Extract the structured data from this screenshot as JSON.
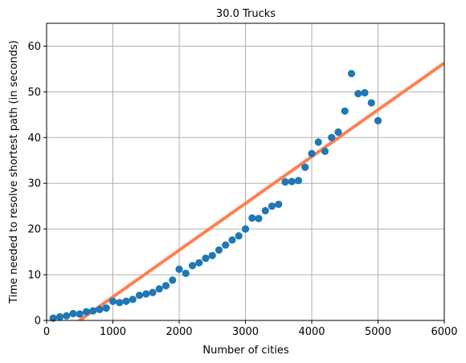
{
  "chart_data": {
    "type": "scatter",
    "title": "30.0 Trucks",
    "xlabel": "Number of cities",
    "ylabel": "Time needed to resolve shortest path (in seconds)",
    "xlim": [
      0,
      6000
    ],
    "ylim": [
      0,
      65
    ],
    "xticks": [
      0,
      1000,
      2000,
      3000,
      4000,
      5000,
      6000
    ],
    "yticks": [
      0,
      10,
      20,
      30,
      40,
      50,
      60
    ],
    "grid": true,
    "colors": {
      "points": "#1f77b4",
      "fit_line": "#ff7f50",
      "grid": "#b0b0b0"
    },
    "series": [
      {
        "kind": "scatter",
        "x": [
          100,
          200,
          300,
          400,
          500,
          600,
          700,
          800,
          900,
          1000,
          1100,
          1200,
          1300,
          1400,
          1500,
          1600,
          1700,
          1800,
          1900,
          2000,
          2100,
          2200,
          2300,
          2400,
          2500,
          2600,
          2700,
          2800,
          2900,
          3000,
          3100,
          3200,
          3300,
          3400,
          3500,
          3600,
          3700,
          3800,
          3900,
          4000,
          4100,
          4200,
          4300,
          4400,
          4500,
          4600,
          4700,
          4800,
          4900,
          5000
        ],
        "y": [
          0.5,
          0.8,
          1.0,
          1.5,
          1.4,
          1.9,
          2.1,
          2.4,
          2.7,
          4.2,
          3.9,
          4.2,
          4.6,
          5.5,
          5.8,
          6.1,
          6.9,
          7.6,
          8.8,
          11.2,
          10.3,
          12.0,
          12.6,
          13.6,
          14.2,
          15.4,
          16.5,
          17.6,
          18.5,
          20.0,
          22.4,
          22.3,
          24.0,
          25.0,
          25.4,
          30.3,
          30.4,
          30.6,
          33.5,
          36.5,
          39.0,
          37.0,
          40.0,
          41.2,
          45.8,
          54.0,
          49.6,
          49.8,
          47.6,
          43.7
        ]
      },
      {
        "kind": "line",
        "x": [
          0,
          6000
        ],
        "y": [
          -5.1,
          56.3
        ]
      }
    ]
  }
}
